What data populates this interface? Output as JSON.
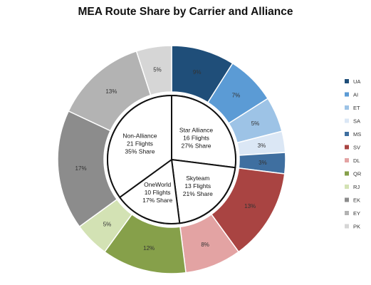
{
  "chart_data": {
    "type": "pie",
    "title": "MEA Route Share by Carrier and Alliance",
    "outer_ring": {
      "slices": [
        {
          "name": "UA",
          "value": 9,
          "label": "9%",
          "color": "#1f4e79"
        },
        {
          "name": "AI",
          "value": 7,
          "label": "7%",
          "color": "#5b9bd5"
        },
        {
          "name": "ET",
          "value": 5,
          "label": "5%",
          "color": "#9dc3e6"
        },
        {
          "name": "SA",
          "value": 3,
          "label": "3%",
          "color": "#dbe7f5"
        },
        {
          "name": "MS",
          "value": 3,
          "label": "3%",
          "color": "#3f6fa0"
        },
        {
          "name": "SV",
          "value": 13,
          "label": "13%",
          "color": "#a94442"
        },
        {
          "name": "DL",
          "value": 8,
          "label": "8%",
          "color": "#e3a3a3"
        },
        {
          "name": "QR",
          "value": 12,
          "label": "12%",
          "color": "#86a04a"
        },
        {
          "name": "RJ",
          "value": 5,
          "label": "5%",
          "color": "#d3e2b4"
        },
        {
          "name": "EK",
          "value": 17,
          "label": "17%",
          "color": "#8c8c8c"
        },
        {
          "name": "EY",
          "value": 13,
          "label": "13%",
          "color": "#b3b3b3"
        },
        {
          "name": "PK",
          "value": 5,
          "label": "5%",
          "color": "#d6d6d6"
        }
      ]
    },
    "inner_pie": {
      "slices": [
        {
          "name": "Star Alliance",
          "flights_text": "16 Flights",
          "share_text": "27% Share",
          "value": 27
        },
        {
          "name": "Skyteam",
          "flights_text": "13 Flights",
          "share_text": "21% Share",
          "value": 21
        },
        {
          "name": "OneWorld",
          "flights_text": "10 Flights",
          "share_text": "17% Share",
          "value": 17
        },
        {
          "name": "Non-Alliance",
          "flights_text": "21 Flights",
          "share_text": "35% Share",
          "value": 35
        }
      ]
    },
    "legend": {
      "placement": "right",
      "items": [
        "UA",
        "AI",
        "ET",
        "SA",
        "MS",
        "SV",
        "DL",
        "QR",
        "RJ",
        "EK",
        "EY",
        "PK"
      ]
    }
  }
}
